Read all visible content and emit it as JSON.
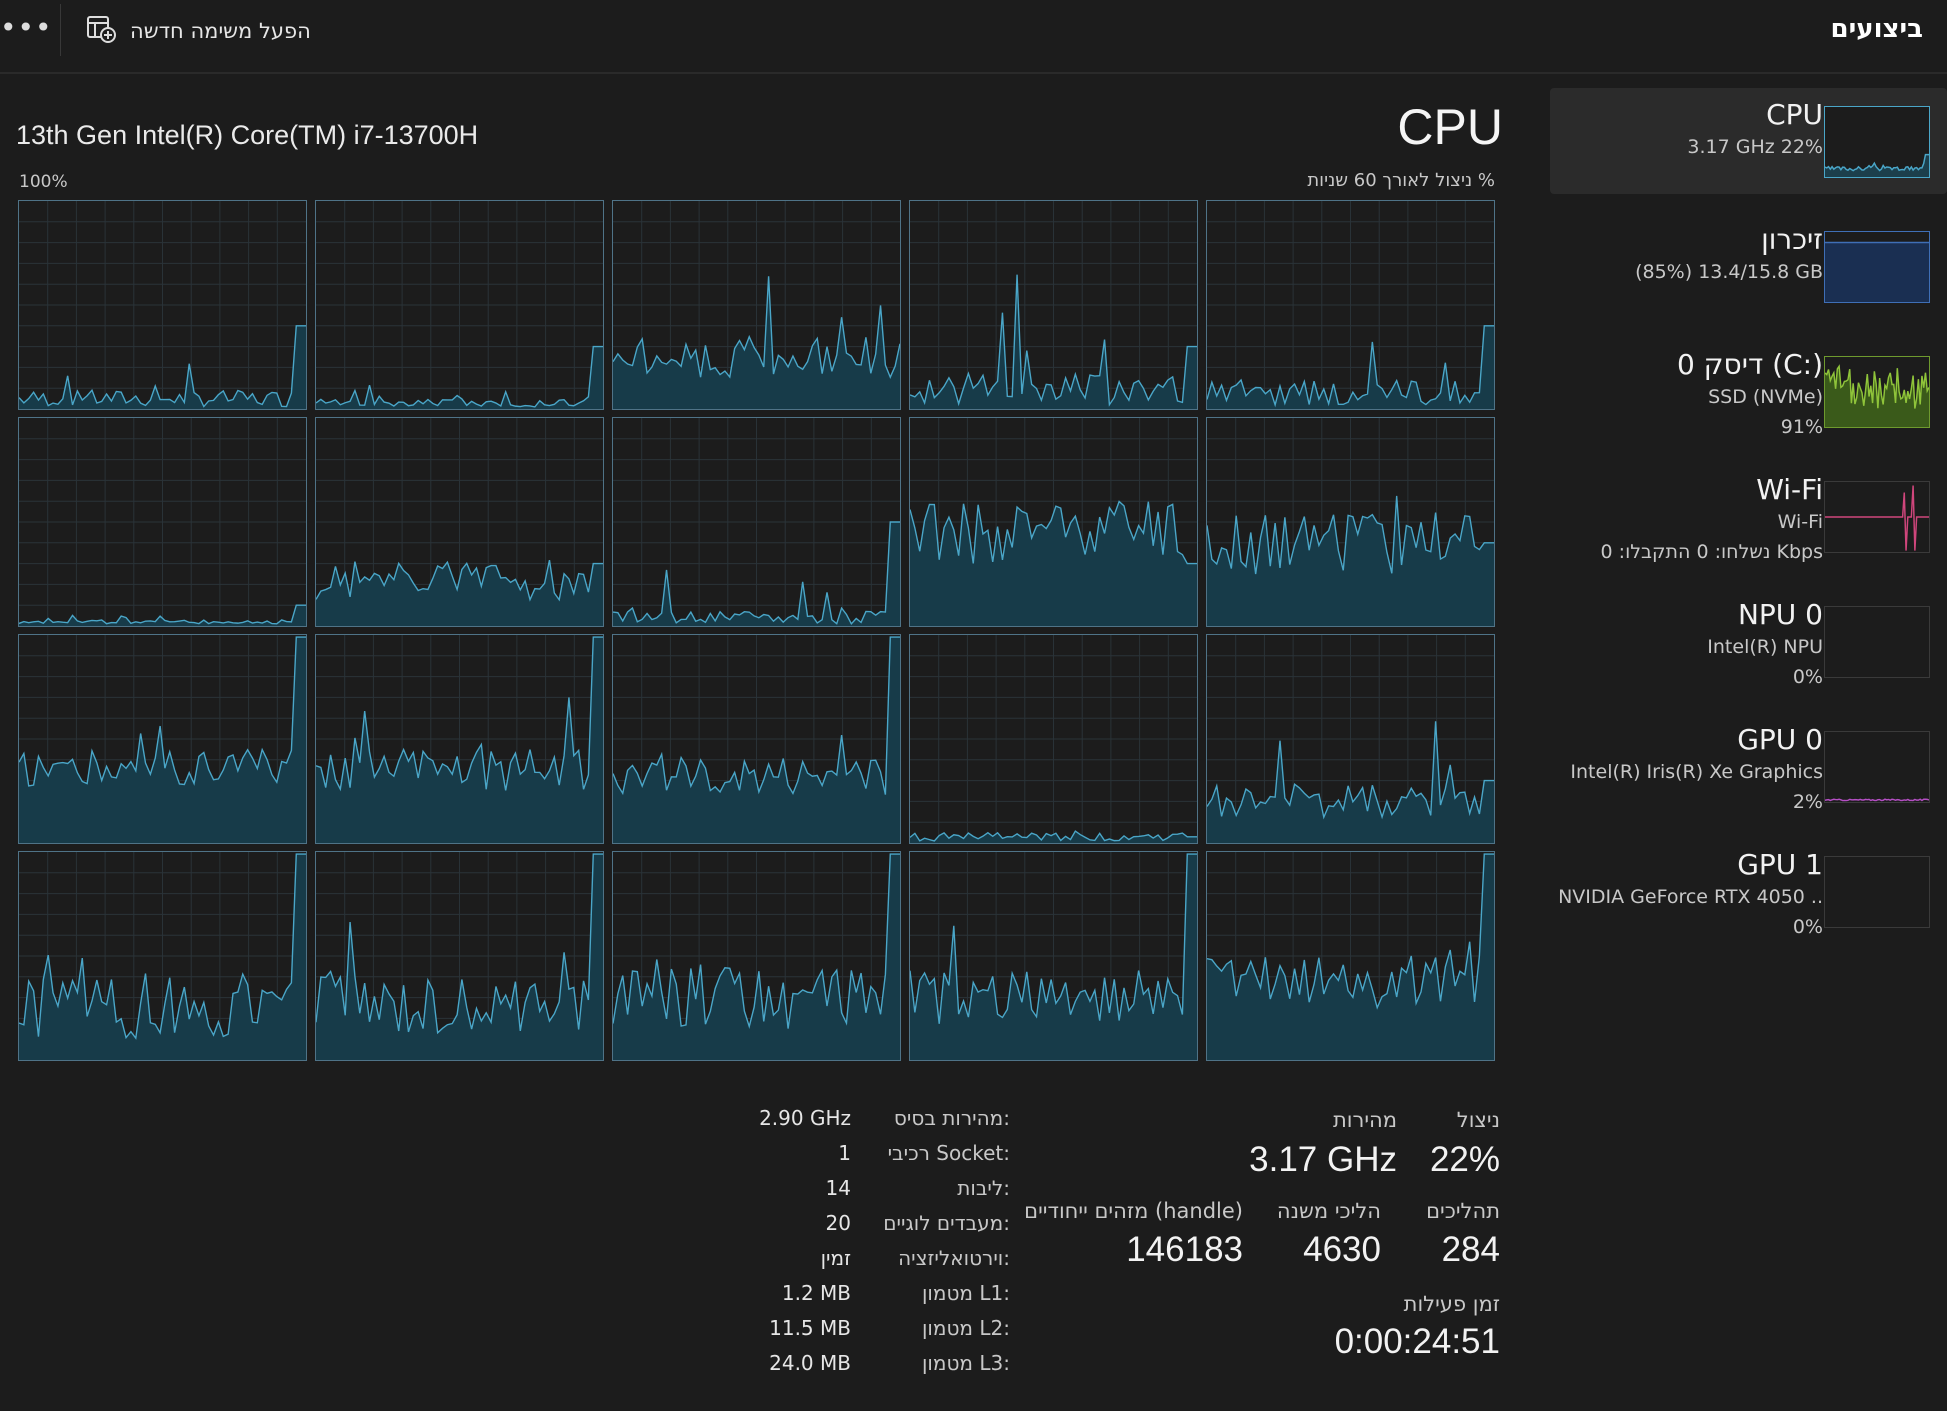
{
  "header": {
    "title": "ביצועים",
    "run_task_label": "הפעל משימה חדשה",
    "more_label": "•••"
  },
  "sidebar": {
    "items": [
      {
        "title": "CPU",
        "sub1": "3.17 GHz  22%",
        "sub2": "",
        "color": "#4aa6c8",
        "fill": "#1c3f4c",
        "active": true
      },
      {
        "title": "זיכרון",
        "sub1": "(85%) 13.4/15.8 GB",
        "sub2": "",
        "color": "#3f6fb6",
        "fill": "#1a2f52",
        "active": false
      },
      {
        "title": "דיסק 0 (C:)",
        "sub1": "SSD (NVMe)",
        "sub2": "91%",
        "color": "#8fc43a",
        "fill": "#3a5a1a",
        "active": false
      },
      {
        "title": "Wi-Fi",
        "sub1": "Wi-Fi",
        "sub2": "נשלחו: 0  התקבלו: 0 Kbps",
        "color": "#d0467c",
        "fill": "none",
        "active": false
      },
      {
        "title": "NPU 0",
        "sub1": "Intel(R) NPU",
        "sub2": "0%",
        "color": "#4aa6c8",
        "fill": "none",
        "active": false
      },
      {
        "title": "GPU 0",
        "sub1": "Intel(R) Iris(R) Xe Graphics",
        "sub2": "2%",
        "color": "#b54fc4",
        "fill": "none",
        "active": false
      },
      {
        "title": "GPU 1",
        "sub1": "NVIDIA GeForce RTX 4050 ..",
        "sub2": "0%",
        "color": "#4aa6c8",
        "fill": "none",
        "active": false
      }
    ]
  },
  "main": {
    "title": "CPU",
    "model": "13th Gen Intel(R) Core(TM) i7-13700H",
    "graph_max": "100%",
    "graph_caption": "% ניצול לאורך 60 שניות",
    "line_color": "#4aa6c8",
    "fill_color": "#173b49",
    "core_count": 20
  },
  "stats": {
    "utilization_label": "ניצול",
    "utilization_value": "22%",
    "speed_label": "מהירות",
    "speed_value": "3.17 GHz",
    "processes_label": "תהליכים",
    "processes_value": "284",
    "threads_label": "הליכי משנה",
    "threads_value": "4630",
    "handles_label": "מזהים ייחודיים (handle)",
    "handles_value": "146183",
    "uptime_label": "זמן פעילות",
    "uptime_value": "0:00:24:51"
  },
  "specs": [
    {
      "key": "מהירות בסיס:",
      "value": "2.90 GHz"
    },
    {
      "key": "רכיבי Socket:",
      "value": "1"
    },
    {
      "key": "ליבות:",
      "value": "14"
    },
    {
      "key": "מעבדים לוגיים:",
      "value": "20"
    },
    {
      "key": "וירטואליזציה:",
      "value": "זמין"
    },
    {
      "key": "מטמון L1:",
      "value": "1.2 MB"
    },
    {
      "key": "מטמון L2:",
      "value": "11.5 MB"
    },
    {
      "key": "מטמון L3:",
      "value": "24.0 MB"
    }
  ]
}
